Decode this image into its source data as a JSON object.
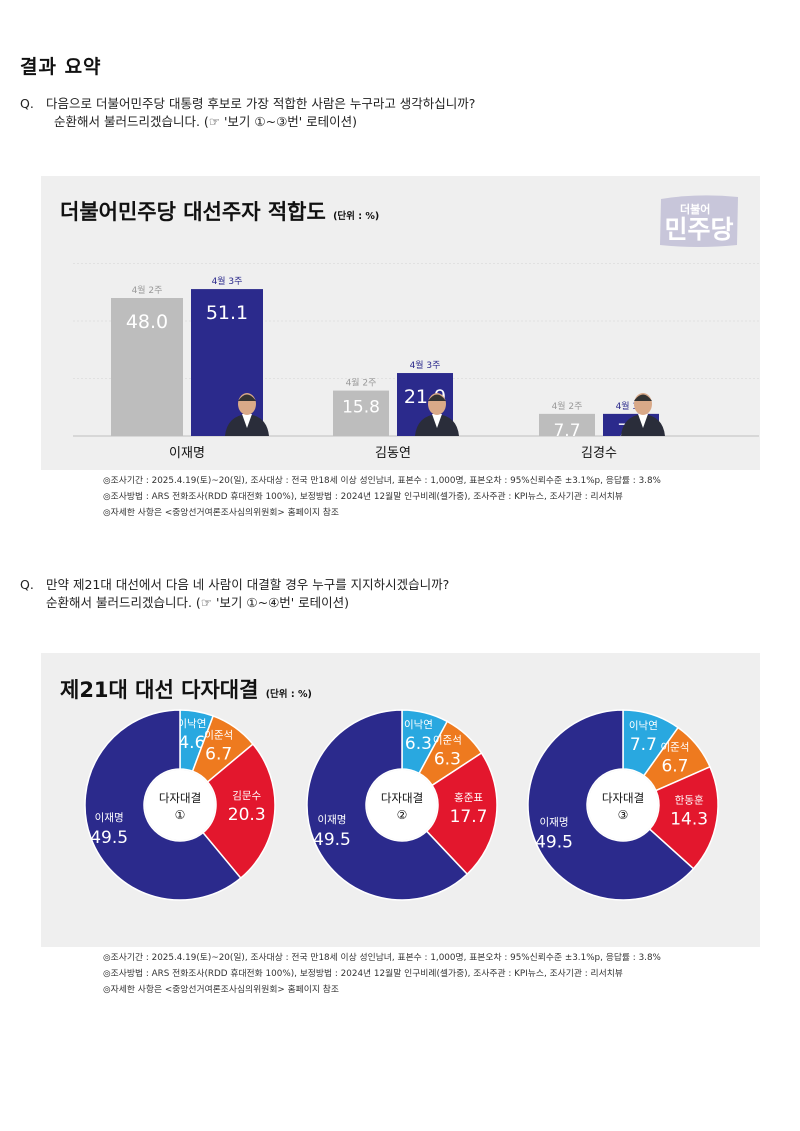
{
  "page_title": "결과 요약",
  "q1": {
    "marker": "Q.",
    "line1": "다음으로 더불어민주당 대통령 후보로 가장 적합한 사람은 누구라고 생각하십니까?",
    "line2": "순환해서 불러드리겠습니다. (☞ '보기 ①~③번' 로테이션)"
  },
  "q2": {
    "marker": "Q.",
    "line1": "만약 제21대 대선에서 다음 네 사람이 대결할 경우 누구를 지지하시겠습니까?",
    "line2": "순환해서 불러드리겠습니다. (☞ '보기 ①~④번' 로테이션)"
  },
  "panel1": {
    "title": "더불어민주당 대선주자 적합도",
    "unit": "(단위 : %)",
    "logo_small": "더불어",
    "logo_big": "민주당"
  },
  "panel2": {
    "title": "제21대 대선 다자대결",
    "unit": "(단위 : %)"
  },
  "notes": {
    "line1": "◎조사기간 : 2025.4.19(토)~20(일), 조사대상 : 전국 만18세 이상 성인남녀, 표본수 : 1,000명, 표본오차 : 95%신뢰수준 ±3.1%p, 응답률 : 3.8%",
    "line2": "◎조사방법 : ARS 전화조사(RDD 휴대전화 100%), 보정방법 : 2024년 12월말 인구비례(셀가중), 조사주관 : KPI뉴스, 조사기관 : 리서치뷰",
    "line3": "◎자세한 사항은 <중앙선거여론조사심의위원회> 홈페이지 참조"
  },
  "colors": {
    "gray_bar": "#bdbdbd",
    "navy": "#2b2a8c",
    "light_blue": "#29a8e0",
    "orange": "#ee7a1f",
    "red": "#e3172d",
    "panel_bg": "#efefef"
  },
  "chart_data": [
    {
      "type": "bar",
      "title": "더불어민주당 대선주자 적합도",
      "unit": "(단위 : %)",
      "categories": [
        "이재명",
        "김동연",
        "김경수"
      ],
      "series": [
        {
          "name": "4월 2주",
          "values": [
            48.0,
            15.8,
            7.7
          ]
        },
        {
          "name": "4월 3주",
          "values": [
            51.1,
            21.9,
            7.7
          ]
        }
      ],
      "ylim": [
        0,
        60
      ],
      "grid": true
    },
    {
      "type": "pie",
      "title": "제21대 대선 다자대결",
      "center_label": "다자대결",
      "center_num": "①",
      "slices": [
        {
          "label": "이낙연",
          "value": 4.6
        },
        {
          "label": "이준석",
          "value": 6.7
        },
        {
          "label": "김문수",
          "value": 20.3
        },
        {
          "label": "이재명",
          "value": 49.5
        }
      ]
    },
    {
      "type": "pie",
      "title": "제21대 대선 다자대결",
      "center_label": "다자대결",
      "center_num": "②",
      "slices": [
        {
          "label": "이낙연",
          "value": 6.3
        },
        {
          "label": "이준석",
          "value": 6.3
        },
        {
          "label": "홍준표",
          "value": 17.7
        },
        {
          "label": "이재명",
          "value": 49.5
        }
      ]
    },
    {
      "type": "pie",
      "title": "제21대 대선 다자대결",
      "center_label": "다자대결",
      "center_num": "③",
      "slices": [
        {
          "label": "이낙연",
          "value": 7.7
        },
        {
          "label": "이준석",
          "value": 6.7
        },
        {
          "label": "한동훈",
          "value": 14.3
        },
        {
          "label": "이재명",
          "value": 49.5
        }
      ]
    }
  ]
}
